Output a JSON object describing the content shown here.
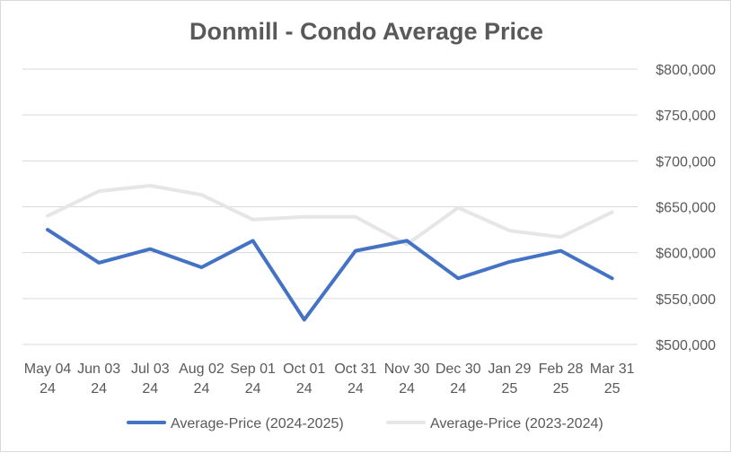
{
  "chart_data": {
    "type": "line",
    "title": "Donmill - Condo Average Price",
    "xlabel": "",
    "ylabel": "",
    "categories": [
      [
        "May 04",
        "24"
      ],
      [
        "Jun 03",
        "24"
      ],
      [
        "Jul 03",
        "24"
      ],
      [
        "Aug 02",
        "24"
      ],
      [
        "Sep 01",
        "24"
      ],
      [
        "Oct 01",
        "24"
      ],
      [
        "Oct 31",
        "24"
      ],
      [
        "Nov 30",
        "24"
      ],
      [
        "Dec 30",
        "24"
      ],
      [
        "Jan 29",
        "25"
      ],
      [
        "Feb 28",
        "25"
      ],
      [
        "Mar 31",
        "25"
      ]
    ],
    "ylim": [
      500000,
      800000
    ],
    "yticks": [
      500000,
      550000,
      600000,
      650000,
      700000,
      750000,
      800000
    ],
    "ytick_labels": [
      "$500,000",
      "$550,000",
      "$600,000",
      "$650,000",
      "$700,000",
      "$750,000",
      "$800,000"
    ],
    "y_axis_side": "right",
    "grid": true,
    "legend_position": "bottom",
    "series": [
      {
        "name": "Average-Price (2024-2025)",
        "color": "#4472c4",
        "values": [
          625000,
          589000,
          604000,
          584000,
          613000,
          527000,
          602000,
          613000,
          572000,
          590000,
          602000,
          572000
        ]
      },
      {
        "name": "Average-Price (2023-2024)",
        "color": "#e7e6e6",
        "values": [
          640000,
          667000,
          673000,
          663000,
          636000,
          639000,
          639000,
          609000,
          649000,
          624000,
          617000,
          644000
        ]
      }
    ],
    "colors": {
      "grid": "#d9d9d9",
      "text": "#595959"
    }
  }
}
